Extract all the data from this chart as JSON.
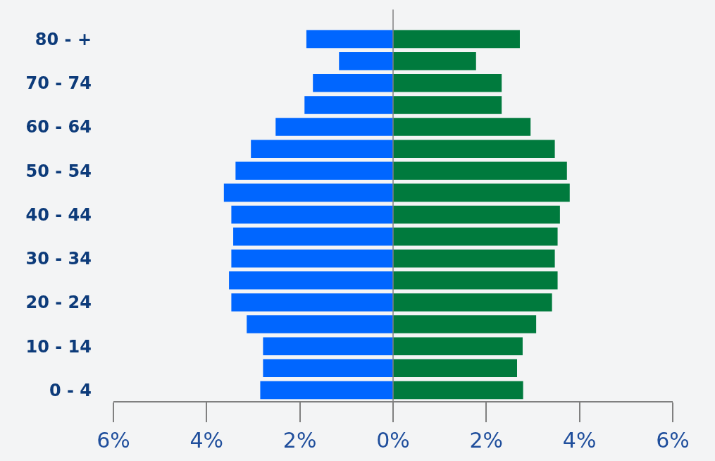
{
  "chart_data": {
    "type": "bar",
    "orientation": "horizontal",
    "stacked": true,
    "categories": [
      "80 - +",
      null,
      "70 - 74",
      null,
      "60 - 64",
      null,
      "50 - 54",
      null,
      "40 - 44",
      null,
      "30 - 34",
      null,
      "20 - 24",
      null,
      "10 - 14",
      null,
      "0 - 4"
    ],
    "series": [
      {
        "color": "#0066ff",
        "values": [
          -1.86,
          -1.16,
          -1.72,
          -1.9,
          -2.52,
          -3.05,
          -3.38,
          -3.63,
          -3.47,
          -3.43,
          -3.47,
          -3.52,
          -3.47,
          -3.14,
          -2.79,
          -2.79,
          -2.85
        ]
      },
      {
        "color": "#007a3d",
        "values": [
          2.72,
          1.78,
          2.33,
          2.33,
          2.95,
          3.47,
          3.73,
          3.79,
          3.58,
          3.53,
          3.47,
          3.53,
          3.41,
          3.07,
          2.78,
          2.66,
          2.79
        ]
      }
    ],
    "xlim": [
      -6,
      6
    ],
    "xticks": [
      {
        "value": -6,
        "label": "6%"
      },
      {
        "value": -4,
        "label": "4%"
      },
      {
        "value": -2,
        "label": "2%"
      },
      {
        "value": 0,
        "label": "0%"
      },
      {
        "value": 2,
        "label": "2%"
      },
      {
        "value": 4,
        "label": "4%"
      },
      {
        "value": 6,
        "label": "6%"
      }
    ],
    "ref_lines": [
      {
        "axis": "x",
        "value": 0,
        "color": "#808080"
      }
    ],
    "grid": false
  }
}
